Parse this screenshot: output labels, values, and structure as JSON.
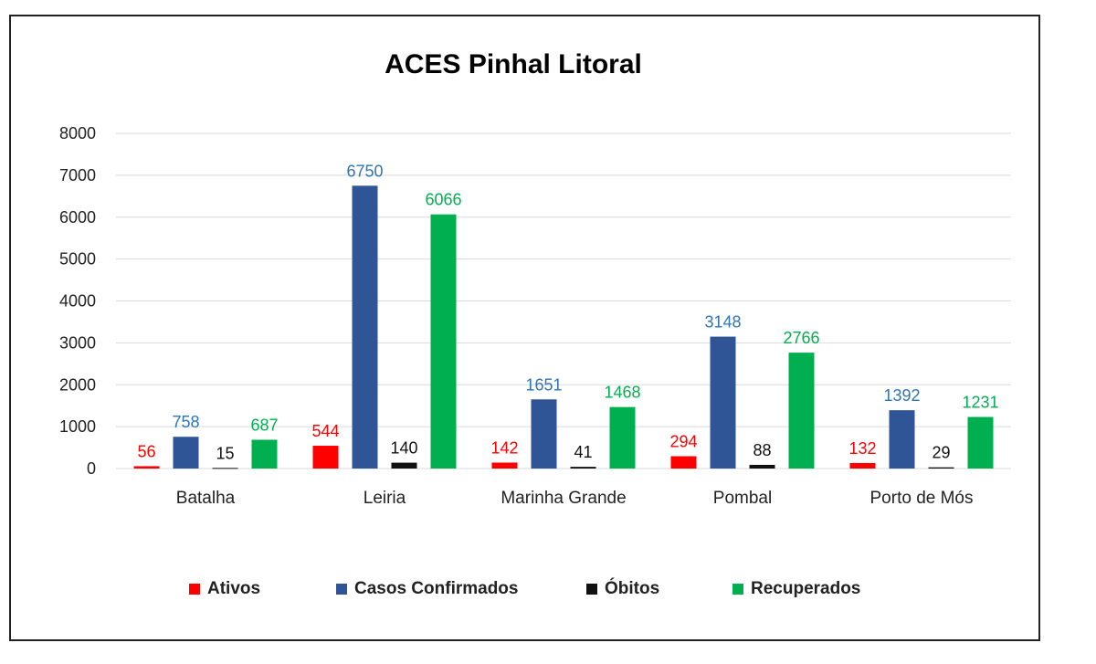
{
  "chart_data": {
    "type": "bar",
    "title": "ACES Pinhal Litoral",
    "categories": [
      "Batalha",
      "Leiria",
      "Marinha Grande",
      "Pombal",
      "Porto de Mós"
    ],
    "series": [
      {
        "name": "Ativos",
        "color": "#ff0000",
        "label_color": "#ff0000",
        "values": [
          56,
          544,
          142,
          294,
          132
        ]
      },
      {
        "name": "Casos Confirmados",
        "color": "#2f5597",
        "label_color": "#2e75b6",
        "values": [
          758,
          6750,
          1651,
          3148,
          1392
        ]
      },
      {
        "name": "Óbitos",
        "color": "#111111",
        "label_color": "#111111",
        "values": [
          15,
          140,
          41,
          88,
          29
        ]
      },
      {
        "name": "Recuperados",
        "color": "#00b050",
        "label_color": "#00b050",
        "values": [
          687,
          6066,
          1468,
          2766,
          1231
        ]
      }
    ],
    "ylim": [
      0,
      8000
    ],
    "yticks": [
      0,
      1000,
      2000,
      3000,
      4000,
      5000,
      6000,
      7000,
      8000
    ],
    "grid": true,
    "legend_position": "bottom",
    "xlabel": "",
    "ylabel": ""
  }
}
